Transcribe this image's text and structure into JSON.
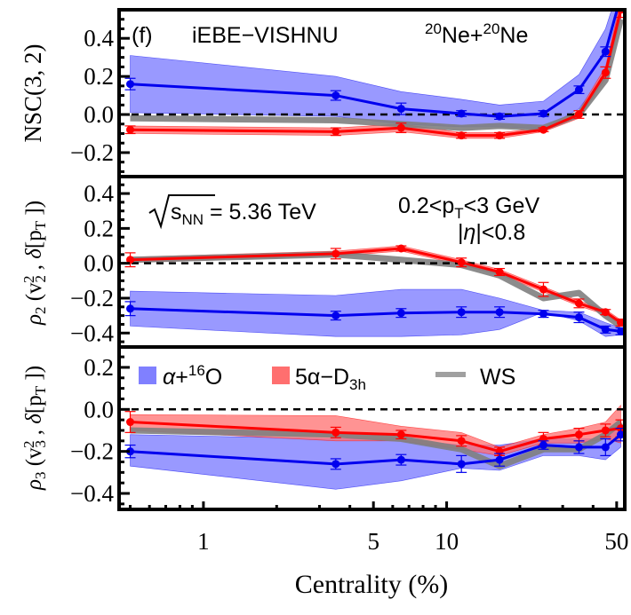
{
  "chart_data": {
    "type": "line",
    "xlabel": "Centrality (%)",
    "xscale": "log",
    "xlim": [
      0.45,
      54
    ],
    "xticks": [
      1,
      5,
      10,
      50
    ],
    "xtick_labels": [
      "1",
      "5",
      "10",
      "50"
    ],
    "legend": {
      "placement": "top-left of bottom panel",
      "entries": [
        {
          "label": "α+¹⁶O",
          "label_parts": [
            "α+",
            "16",
            "O"
          ],
          "color": "#0000ee",
          "band_color": "#8080ff"
        },
        {
          "label": "5α-D3h",
          "label_parts": [
            "5α−D",
            "3h"
          ],
          "color": "#ff0000",
          "band_color": "#ff6f6f"
        },
        {
          "label": "WS",
          "color": "#808080"
        }
      ]
    },
    "panels": [
      {
        "id": "nsc32",
        "ylabel": "NSC(3, 2)",
        "ylim": [
          -0.326,
          0.55
        ],
        "yticks": [
          -0.2,
          0.0,
          0.2,
          0.4
        ],
        "ytick_labels": [
          "−0.2",
          "0.0",
          "0.2",
          "0.4"
        ],
        "annotations": {
          "panel_tag": "(f)",
          "model": "iEBE−VISHNU",
          "system_prefix": "20",
          "system_a": "Ne+",
          "system_prefix2": "20",
          "system_b": "Ne"
        },
        "x": [
          0.5,
          3.5,
          6.5,
          11.5,
          16.5,
          25,
          35,
          45,
          52
        ],
        "series": [
          {
            "name": "α+16O",
            "values": [
              0.16,
              0.1,
              0.03,
              0.005,
              -0.01,
              0.005,
              0.13,
              0.33,
              0.62
            ],
            "err": [
              0.03,
              0.025,
              0.03,
              0.015,
              0.015,
              0.015,
              0.02,
              0.025,
              0.04
            ],
            "band_low": [
              0.01,
              -0.01,
              -0.05,
              -0.065,
              -0.065,
              -0.075,
              0.03,
              0.22,
              0.5
            ],
            "band_high": [
              0.31,
              0.2,
              0.12,
              0.08,
              0.05,
              0.07,
              0.21,
              0.45,
              0.7
            ]
          },
          {
            "name": "5α-D3h",
            "values": [
              -0.08,
              -0.09,
              -0.07,
              -0.11,
              -0.11,
              -0.08,
              0.0,
              0.22,
              0.55
            ],
            "err": [
              0.02,
              0.02,
              0.025,
              0.015,
              0.015,
              0.01,
              0.02,
              0.03,
              0.04
            ],
            "band_low": [
              -0.1,
              -0.11,
              -0.09,
              -0.125,
              -0.125,
              -0.09,
              -0.02,
              0.19,
              0.5
            ],
            "band_high": [
              -0.06,
              -0.07,
              -0.05,
              -0.095,
              -0.095,
              -0.07,
              0.02,
              0.25,
              0.6
            ]
          },
          {
            "name": "WS",
            "values": [
              -0.02,
              -0.03,
              -0.05,
              -0.07,
              -0.06,
              -0.07,
              0.0,
              0.18,
              0.5
            ]
          }
        ]
      },
      {
        "id": "rho2",
        "ylabel": "ρ2 (v2², δ[pT])",
        "ylim": [
          -0.48,
          0.497
        ],
        "yticks": [
          -0.4,
          -0.2,
          0.0,
          0.2,
          0.4
        ],
        "ytick_labels": [
          "−0.4",
          "−0.2",
          "0.0",
          "0.2",
          "0.4"
        ],
        "annotations": {
          "energy_label": "s",
          "energy_sub": "NN",
          "energy_value": " = 5.36 TeV",
          "pt_cut_a": "0.2<p",
          "pt_cut_sub": "T",
          "pt_cut_b": "<3 GeV",
          "eta_cut_a": "|",
          "eta_cut_eta": "η",
          "eta_cut_b": "|<0.8"
        },
        "x": [
          0.5,
          3.5,
          6.5,
          11.5,
          16.5,
          25,
          35,
          45,
          52
        ],
        "series": [
          {
            "name": "α+16O",
            "values": [
              -0.26,
              -0.3,
              -0.285,
              -0.28,
              -0.28,
              -0.29,
              -0.31,
              -0.38,
              -0.39
            ],
            "err": [
              0.04,
              0.025,
              0.025,
              0.03,
              0.03,
              0.02,
              0.03,
              0.02,
              0.02
            ],
            "band_low": [
              -0.36,
              -0.42,
              -0.42,
              -0.41,
              -0.38,
              -0.28,
              -0.33,
              -0.42,
              -0.41
            ],
            "band_high": [
              -0.16,
              -0.185,
              -0.15,
              -0.15,
              -0.2,
              -0.27,
              -0.28,
              -0.34,
              -0.37
            ]
          },
          {
            "name": "5α-D3h",
            "values": [
              0.02,
              0.055,
              0.085,
              0.005,
              -0.05,
              -0.15,
              -0.23,
              -0.28,
              -0.34
            ],
            "err": [
              0.04,
              0.03,
              0.015,
              0.025,
              0.02,
              0.04,
              0.025,
              0.015,
              0.02
            ],
            "band_low": [
              0.005,
              0.04,
              0.07,
              -0.01,
              -0.065,
              -0.165,
              -0.245,
              -0.295,
              -0.355
            ],
            "band_high": [
              0.035,
              0.07,
              0.1,
              0.02,
              -0.035,
              -0.135,
              -0.215,
              -0.265,
              -0.325
            ]
          },
          {
            "name": "WS",
            "values": [
              0.02,
              0.05,
              0.02,
              -0.01,
              -0.07,
              -0.2,
              -0.17,
              -0.3,
              -0.36
            ]
          }
        ]
      },
      {
        "id": "rho3",
        "ylabel": "ρ3 (v3², δ[pT])",
        "ylim": [
          -0.476,
          0.297
        ],
        "yticks": [
          -0.4,
          -0.2,
          0.0,
          0.2
        ],
        "ytick_labels": [
          "−0.4",
          "−0.2",
          "0.0",
          "0.2"
        ],
        "x": [
          0.5,
          3.5,
          6.5,
          11.5,
          16.5,
          25,
          35,
          45,
          52
        ],
        "series": [
          {
            "name": "α+16O",
            "values": [
              -0.2,
              -0.26,
              -0.24,
              -0.26,
              -0.24,
              -0.17,
              -0.18,
              -0.18,
              -0.12
            ],
            "err": [
              0.03,
              0.025,
              0.025,
              0.04,
              0.03,
              0.02,
              0.03,
              0.04,
              0.03
            ],
            "band_low": [
              -0.27,
              -0.38,
              -0.34,
              -0.28,
              -0.29,
              -0.22,
              -0.22,
              -0.24,
              -0.18
            ],
            "band_high": [
              -0.12,
              -0.14,
              -0.14,
              -0.17,
              -0.17,
              -0.14,
              -0.14,
              -0.14,
              -0.05
            ]
          },
          {
            "name": "5α-D3h",
            "values": [
              -0.06,
              -0.11,
              -0.12,
              -0.15,
              -0.2,
              -0.14,
              -0.12,
              -0.1,
              -0.09
            ],
            "err": [
              0.05,
              0.025,
              0.02,
              0.025,
              0.02,
              0.03,
              0.03,
              0.03,
              0.04
            ],
            "band_low": [
              -0.1,
              -0.15,
              -0.15,
              -0.19,
              -0.22,
              -0.16,
              -0.16,
              -0.14,
              -0.16
            ],
            "band_high": [
              -0.025,
              -0.03,
              -0.08,
              -0.11,
              -0.18,
              -0.12,
              -0.09,
              -0.06,
              0.02
            ]
          },
          {
            "name": "WS",
            "values": [
              -0.1,
              -0.12,
              -0.14,
              -0.19,
              -0.27,
              -0.19,
              -0.19,
              -0.12,
              -0.06
            ]
          }
        ]
      }
    ]
  }
}
